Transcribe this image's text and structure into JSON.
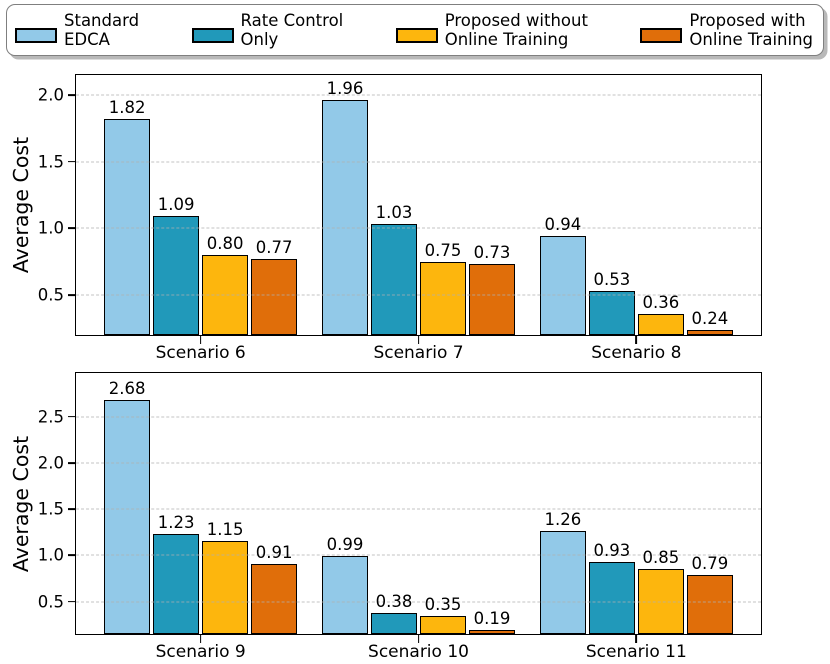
{
  "legend": {
    "items": [
      {
        "line1": "Standard",
        "line2": "EDCA",
        "color": "#92c9e8"
      },
      {
        "line1": "Rate Control",
        "line2": "Only",
        "color": "#2199ba"
      },
      {
        "line1": "Proposed without",
        "line2": "Online Training",
        "color": "#fdb60d"
      },
      {
        "line1": "Proposed with",
        "line2": "Online Training",
        "color": "#e06e0a"
      }
    ]
  },
  "chart_data": [
    {
      "type": "bar",
      "title": "",
      "xlabel": "",
      "ylabel": "Average Cost",
      "categories": [
        "Scenario 6",
        "Scenario 7",
        "Scenario 8"
      ],
      "series": [
        {
          "name": "Standard EDCA",
          "color": "#92c9e8",
          "values": [
            1.82,
            1.96,
            0.94
          ]
        },
        {
          "name": "Rate Control Only",
          "color": "#2199ba",
          "values": [
            1.09,
            1.03,
            0.53
          ]
        },
        {
          "name": "Proposed without Online Training",
          "color": "#fdb60d",
          "values": [
            0.8,
            0.75,
            0.36
          ]
        },
        {
          "name": "Proposed with Online Training",
          "color": "#e06e0a",
          "values": [
            0.77,
            0.73,
            0.24
          ]
        }
      ],
      "yticks": [
        0.5,
        1.0,
        1.5,
        2.0
      ],
      "ylim": [
        0.2,
        2.15
      ],
      "grid": true,
      "grid_style": "dashed",
      "legend_position": "top-outside",
      "group_centers_pct": [
        18.2,
        50,
        81.8
      ]
    },
    {
      "type": "bar",
      "title": "",
      "xlabel": "",
      "ylabel": "Average Cost",
      "categories": [
        "Scenario 9",
        "Scenario 10",
        "Scenario 11"
      ],
      "series": [
        {
          "name": "Standard EDCA",
          "color": "#92c9e8",
          "values": [
            2.68,
            0.99,
            1.26
          ]
        },
        {
          "name": "Rate Control Only",
          "color": "#2199ba",
          "values": [
            1.23,
            0.38,
            0.93
          ]
        },
        {
          "name": "Proposed without Online Training",
          "color": "#fdb60d",
          "values": [
            1.15,
            0.35,
            0.85
          ]
        },
        {
          "name": "Proposed with Online Training",
          "color": "#e06e0a",
          "values": [
            0.91,
            0.19,
            0.79
          ]
        }
      ],
      "yticks": [
        0.5,
        1.0,
        1.5,
        2.0,
        2.5
      ],
      "ylim": [
        0.15,
        2.97
      ],
      "grid": true,
      "grid_style": "dashed",
      "legend_position": "top-outside",
      "group_centers_pct": [
        18.2,
        50,
        81.8
      ]
    }
  ]
}
